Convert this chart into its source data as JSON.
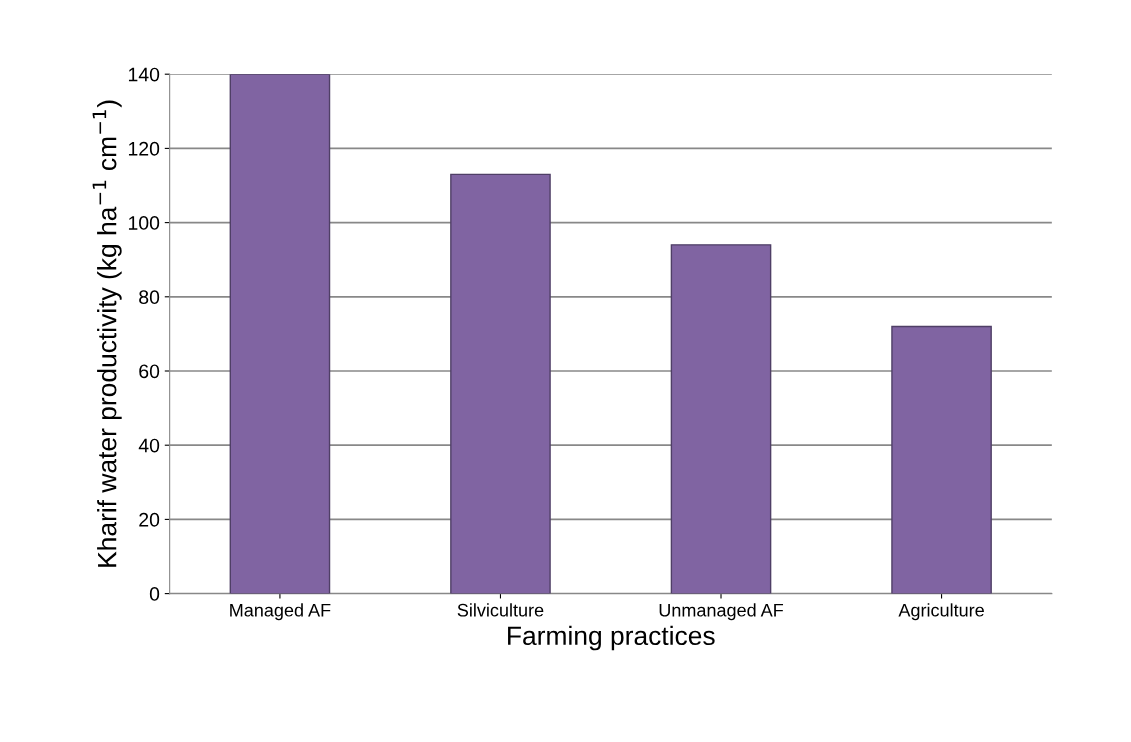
{
  "chart_data": {
    "type": "bar",
    "xlabel": "Farming practices",
    "ylabel": "Kharif water productivity (kg ha$^{−1}$ cm$^{−1}$)",
    "categories": [
      "Managed AF",
      "Silviculture",
      "Unmanaged AF",
      "Agriculture"
    ],
    "values": [
      140,
      113,
      94,
      72
    ],
    "color": "#8064a2",
    "ylim": [
      0,
      140
    ],
    "yticks": [
      0,
      20,
      40,
      60,
      80,
      100,
      120,
      140
    ],
    "grid": "y",
    "legend": false
  }
}
